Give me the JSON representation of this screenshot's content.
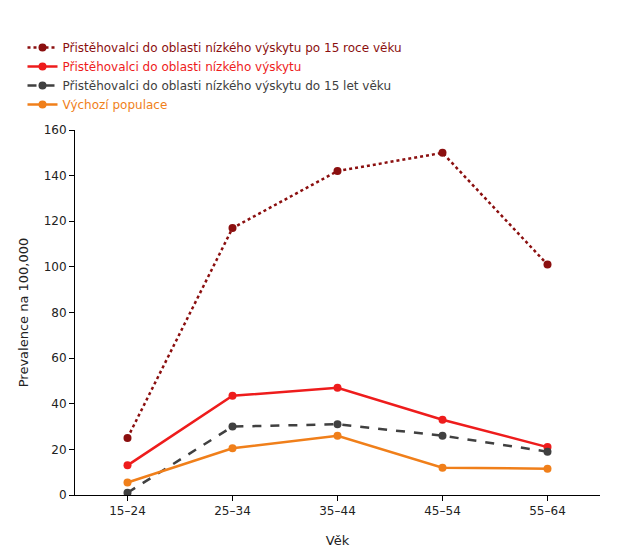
{
  "chart_data": {
    "type": "line",
    "x_label": "Věk",
    "y_label": "Prevalence na 100,000",
    "categories": [
      "15–24",
      "25–34",
      "35–44",
      "45–54",
      "55–64"
    ],
    "series": [
      {
        "name": "Přistěhovalci do oblasti nízkého výskytu po 15 roce věku",
        "color": "#8b0f0f",
        "line_style": "dotted",
        "marker": "circle",
        "values": [
          25,
          117,
          142,
          150,
          101
        ]
      },
      {
        "name": "Přistěhovalci do oblasti nízkého výskytu",
        "color": "#ee1c1c",
        "line_style": "solid",
        "marker": "circle",
        "values": [
          13,
          43.5,
          47,
          33,
          21
        ]
      },
      {
        "name": "Přistěhovalci do oblasti nízkého výskytu do 15 let věku",
        "color": "#404040",
        "line_style": "dashed",
        "marker": "circle",
        "values": [
          1,
          30,
          31,
          26,
          19
        ]
      },
      {
        "name": "Výchozí populace",
        "color": "#f07f1a",
        "line_style": "solid",
        "marker": "circle",
        "values": [
          5.5,
          20.5,
          26,
          12,
          11.5
        ]
      }
    ],
    "ylim": [
      0,
      160
    ],
    "yticks": [
      0,
      20,
      40,
      60,
      80,
      100,
      120,
      140,
      160
    ],
    "grid": false,
    "legend": "top-left"
  }
}
